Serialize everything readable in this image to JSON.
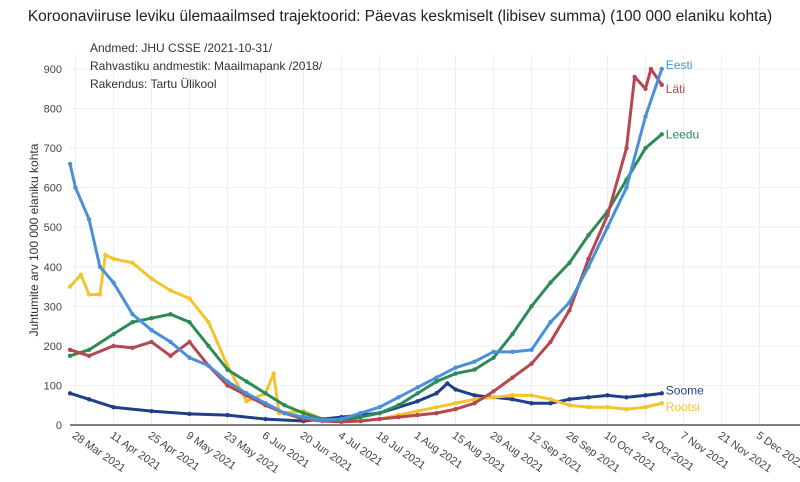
{
  "chart_data": {
    "type": "line",
    "title": "Koroonaviiruse leviku ülemaailmsed trajektoorid: Päevas keskmiselt (libisev summa) (100 000 elaniku kohta)",
    "ylabel": "Juhtumite arv 100 000 elaniku kohta",
    "xlabel": "",
    "ylim": [
      0,
      950
    ],
    "yticks": [
      0,
      100,
      200,
      300,
      400,
      500,
      600,
      700,
      800,
      900
    ],
    "xticks": [
      "2021-03-28",
      "2021-04-11",
      "2021-04-25",
      "2021-05-09",
      "2021-05-23",
      "2021-06-06",
      "2021-06-20",
      "2021-07-04",
      "2021-07-18",
      "2021-08-01",
      "2021-08-15",
      "2021-08-29",
      "2021-09-12",
      "2021-09-26",
      "2021-10-10",
      "2021-10-24",
      "2021-11-07",
      "2021-11-21",
      "2021-12-05"
    ],
    "xtick_labels": [
      "28 Mar 2021",
      "11 Apr 2021",
      "25 Apr 2021",
      "9 May 2021",
      "23 May 2021",
      "6 Jun 2021",
      "20 Jun 2021",
      "4 Jul 2021",
      "18 Jul 2021",
      "1 Aug 2021",
      "15 Aug 2021",
      "29 Aug 2021",
      "12 Sep 2021",
      "26 Sep 2021",
      "10 Oct 2021",
      "24 Oct 2021",
      "7 Nov 2021",
      "21 Nov 2021",
      "5 Dec 2021"
    ],
    "grid": true,
    "annotations": [
      "Andmed: JHU CSSE /2021-10-31/",
      "Rahvastiku andmestik: Maailmapank /2018/",
      "Rakendus: Tartu Ülikool"
    ],
    "series": [
      {
        "name": "Soome",
        "color": "#1f3f8a",
        "points": [
          [
            "2021-03-26",
            80
          ],
          [
            "2021-04-02",
            65
          ],
          [
            "2021-04-11",
            45
          ],
          [
            "2021-04-25",
            35
          ],
          [
            "2021-05-09",
            28
          ],
          [
            "2021-05-23",
            25
          ],
          [
            "2021-06-06",
            15
          ],
          [
            "2021-06-20",
            10
          ],
          [
            "2021-07-04",
            20
          ],
          [
            "2021-07-18",
            30
          ],
          [
            "2021-08-01",
            60
          ],
          [
            "2021-08-08",
            80
          ],
          [
            "2021-08-12",
            105
          ],
          [
            "2021-08-15",
            90
          ],
          [
            "2021-08-22",
            75
          ],
          [
            "2021-08-29",
            70
          ],
          [
            "2021-09-05",
            65
          ],
          [
            "2021-09-12",
            55
          ],
          [
            "2021-09-19",
            55
          ],
          [
            "2021-09-26",
            65
          ],
          [
            "2021-10-03",
            70
          ],
          [
            "2021-10-10",
            75
          ],
          [
            "2021-10-17",
            70
          ],
          [
            "2021-10-24",
            75
          ],
          [
            "2021-10-30",
            80
          ]
        ]
      },
      {
        "name": "Rootsi",
        "color": "#f4c430",
        "points": [
          [
            "2021-03-26",
            350
          ],
          [
            "2021-03-30",
            380
          ],
          [
            "2021-04-02",
            330
          ],
          [
            "2021-04-06",
            330
          ],
          [
            "2021-04-08",
            430
          ],
          [
            "2021-04-11",
            420
          ],
          [
            "2021-04-18",
            410
          ],
          [
            "2021-04-25",
            370
          ],
          [
            "2021-05-02",
            340
          ],
          [
            "2021-05-09",
            320
          ],
          [
            "2021-05-16",
            260
          ],
          [
            "2021-05-23",
            150
          ],
          [
            "2021-05-30",
            60
          ],
          [
            "2021-06-06",
            80
          ],
          [
            "2021-06-09",
            130
          ],
          [
            "2021-06-11",
            30
          ],
          [
            "2021-06-20",
            35
          ],
          [
            "2021-06-27",
            15
          ],
          [
            "2021-07-04",
            10
          ],
          [
            "2021-07-11",
            10
          ],
          [
            "2021-07-18",
            15
          ],
          [
            "2021-07-25",
            25
          ],
          [
            "2021-08-01",
            35
          ],
          [
            "2021-08-08",
            45
          ],
          [
            "2021-08-15",
            55
          ],
          [
            "2021-08-22",
            65
          ],
          [
            "2021-08-29",
            70
          ],
          [
            "2021-09-05",
            75
          ],
          [
            "2021-09-12",
            75
          ],
          [
            "2021-09-19",
            65
          ],
          [
            "2021-09-26",
            50
          ],
          [
            "2021-10-03",
            45
          ],
          [
            "2021-10-10",
            45
          ],
          [
            "2021-10-17",
            40
          ],
          [
            "2021-10-24",
            45
          ],
          [
            "2021-10-30",
            55
          ]
        ]
      },
      {
        "name": "Leedu",
        "color": "#2e8b57",
        "points": [
          [
            "2021-03-26",
            175
          ],
          [
            "2021-04-02",
            190
          ],
          [
            "2021-04-11",
            230
          ],
          [
            "2021-04-18",
            260
          ],
          [
            "2021-04-25",
            270
          ],
          [
            "2021-05-02",
            280
          ],
          [
            "2021-05-09",
            260
          ],
          [
            "2021-05-16",
            200
          ],
          [
            "2021-05-23",
            140
          ],
          [
            "2021-05-30",
            110
          ],
          [
            "2021-06-06",
            80
          ],
          [
            "2021-06-13",
            50
          ],
          [
            "2021-06-20",
            30
          ],
          [
            "2021-06-27",
            15
          ],
          [
            "2021-07-04",
            12
          ],
          [
            "2021-07-11",
            20
          ],
          [
            "2021-07-18",
            30
          ],
          [
            "2021-07-25",
            50
          ],
          [
            "2021-08-01",
            80
          ],
          [
            "2021-08-08",
            110
          ],
          [
            "2021-08-15",
            130
          ],
          [
            "2021-08-22",
            140
          ],
          [
            "2021-08-29",
            170
          ],
          [
            "2021-09-05",
            230
          ],
          [
            "2021-09-12",
            300
          ],
          [
            "2021-09-19",
            360
          ],
          [
            "2021-09-26",
            410
          ],
          [
            "2021-10-03",
            480
          ],
          [
            "2021-10-10",
            540
          ],
          [
            "2021-10-17",
            620
          ],
          [
            "2021-10-24",
            700
          ],
          [
            "2021-10-30",
            735
          ]
        ]
      },
      {
        "name": "Läti",
        "color": "#b5474f",
        "points": [
          [
            "2021-03-26",
            190
          ],
          [
            "2021-04-02",
            175
          ],
          [
            "2021-04-11",
            200
          ],
          [
            "2021-04-18",
            195
          ],
          [
            "2021-04-25",
            210
          ],
          [
            "2021-05-02",
            175
          ],
          [
            "2021-05-09",
            210
          ],
          [
            "2021-05-16",
            150
          ],
          [
            "2021-05-23",
            100
          ],
          [
            "2021-05-30",
            75
          ],
          [
            "2021-06-06",
            50
          ],
          [
            "2021-06-13",
            30
          ],
          [
            "2021-06-20",
            15
          ],
          [
            "2021-06-27",
            10
          ],
          [
            "2021-07-04",
            8
          ],
          [
            "2021-07-11",
            10
          ],
          [
            "2021-07-18",
            15
          ],
          [
            "2021-07-25",
            20
          ],
          [
            "2021-08-01",
            25
          ],
          [
            "2021-08-08",
            30
          ],
          [
            "2021-08-15",
            40
          ],
          [
            "2021-08-22",
            55
          ],
          [
            "2021-08-29",
            85
          ],
          [
            "2021-09-05",
            120
          ],
          [
            "2021-09-12",
            155
          ],
          [
            "2021-09-19",
            210
          ],
          [
            "2021-09-26",
            290
          ],
          [
            "2021-10-03",
            420
          ],
          [
            "2021-10-10",
            530
          ],
          [
            "2021-10-17",
            700
          ],
          [
            "2021-10-20",
            880
          ],
          [
            "2021-10-24",
            850
          ],
          [
            "2021-10-26",
            900
          ],
          [
            "2021-10-30",
            860
          ]
        ]
      },
      {
        "name": "Eesti",
        "color": "#4a90d9",
        "points": [
          [
            "2021-03-26",
            660
          ],
          [
            "2021-03-28",
            600
          ],
          [
            "2021-04-02",
            520
          ],
          [
            "2021-04-06",
            400
          ],
          [
            "2021-04-11",
            360
          ],
          [
            "2021-04-18",
            280
          ],
          [
            "2021-04-25",
            240
          ],
          [
            "2021-05-02",
            210
          ],
          [
            "2021-05-09",
            170
          ],
          [
            "2021-05-16",
            150
          ],
          [
            "2021-05-23",
            110
          ],
          [
            "2021-05-30",
            80
          ],
          [
            "2021-06-06",
            55
          ],
          [
            "2021-06-13",
            30
          ],
          [
            "2021-06-20",
            20
          ],
          [
            "2021-06-27",
            12
          ],
          [
            "2021-07-04",
            15
          ],
          [
            "2021-07-11",
            30
          ],
          [
            "2021-07-18",
            45
          ],
          [
            "2021-07-25",
            70
          ],
          [
            "2021-08-01",
            95
          ],
          [
            "2021-08-08",
            120
          ],
          [
            "2021-08-15",
            145
          ],
          [
            "2021-08-22",
            160
          ],
          [
            "2021-08-29",
            185
          ],
          [
            "2021-09-05",
            185
          ],
          [
            "2021-09-12",
            190
          ],
          [
            "2021-09-19",
            260
          ],
          [
            "2021-09-26",
            310
          ],
          [
            "2021-10-03",
            400
          ],
          [
            "2021-10-10",
            500
          ],
          [
            "2021-10-17",
            600
          ],
          [
            "2021-10-24",
            780
          ],
          [
            "2021-10-30",
            900
          ]
        ]
      }
    ]
  }
}
